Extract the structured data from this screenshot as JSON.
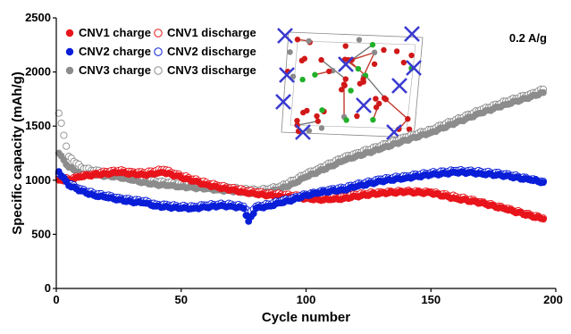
{
  "chart_data": {
    "type": "scatter",
    "xlabel": "Cycle number",
    "ylabel": "Specific capacity (mAh/g)",
    "xlim": [
      0,
      200
    ],
    "ylim": [
      0,
      2500
    ],
    "xticks": [
      0,
      50,
      100,
      150,
      200
    ],
    "xtick_labels": [
      "0",
      "50",
      "100",
      "150",
      "200"
    ],
    "yticks": [
      0,
      500,
      1000,
      1500,
      2000,
      2500
    ],
    "ytick_labels": [
      "0",
      "500",
      "1000",
      "1500",
      "2000",
      "2500"
    ],
    "grid": false,
    "legend_position": "top-left",
    "annotation": "0.2 A/g",
    "inset": "crystal-structure-image",
    "series": [
      {
        "name": "CNV1 charge",
        "marker": "filled",
        "color": "#e8141b",
        "x": [
          1,
          5,
          10,
          15,
          20,
          25,
          30,
          35,
          40,
          43,
          48,
          55,
          60,
          65,
          70,
          75,
          80,
          85,
          90,
          95,
          100,
          105,
          110,
          115,
          120,
          130,
          140,
          150,
          160,
          170,
          180,
          190,
          195
        ],
        "y": [
          1000,
          1000,
          1030,
          1050,
          1060,
          1070,
          1060,
          1050,
          1060,
          1070,
          1040,
          990,
          960,
          930,
          910,
          890,
          870,
          860,
          850,
          840,
          830,
          820,
          820,
          830,
          850,
          880,
          890,
          880,
          830,
          790,
          730,
          670,
          640
        ]
      },
      {
        "name": "CNV1 discharge",
        "marker": "open",
        "color": "#e8141b",
        "x": [
          1,
          5,
          10,
          15,
          20,
          25,
          30,
          35,
          40,
          43,
          48,
          55,
          60,
          65,
          70,
          75,
          80,
          85,
          90,
          95,
          100,
          105,
          110,
          115,
          120,
          130,
          140,
          150,
          160,
          170,
          180,
          190,
          195
        ],
        "y": [
          1030,
          1010,
          1040,
          1060,
          1080,
          1090,
          1080,
          1070,
          1090,
          1100,
          1060,
          1010,
          980,
          950,
          930,
          910,
          890,
          880,
          870,
          860,
          850,
          840,
          840,
          850,
          870,
          890,
          900,
          890,
          850,
          800,
          740,
          680,
          650
        ]
      },
      {
        "name": "CNV2 charge",
        "marker": "filled",
        "color": "#0a1ed8",
        "x": [
          1,
          5,
          10,
          15,
          20,
          25,
          30,
          35,
          40,
          45,
          50,
          55,
          60,
          65,
          70,
          75,
          77,
          80,
          85,
          90,
          95,
          100,
          105,
          110,
          115,
          120,
          130,
          140,
          150,
          160,
          165,
          170,
          180,
          190,
          195
        ],
        "y": [
          1080,
          950,
          900,
          860,
          840,
          820,
          800,
          790,
          760,
          750,
          740,
          740,
          750,
          760,
          760,
          740,
          620,
          740,
          760,
          790,
          820,
          860,
          880,
          900,
          910,
          940,
          990,
          1020,
          1050,
          1070,
          1070,
          1060,
          1040,
          1000,
          980
        ]
      },
      {
        "name": "CNV2 discharge",
        "marker": "open",
        "color": "#0a1ed8",
        "x": [
          1,
          5,
          10,
          15,
          20,
          25,
          30,
          35,
          40,
          45,
          50,
          55,
          60,
          65,
          70,
          75,
          77,
          80,
          85,
          90,
          95,
          100,
          105,
          110,
          115,
          120,
          130,
          140,
          150,
          160,
          165,
          170,
          180,
          190,
          195
        ],
        "y": [
          1060,
          970,
          920,
          880,
          860,
          840,
          820,
          810,
          780,
          770,
          760,
          760,
          770,
          780,
          780,
          760,
          700,
          760,
          780,
          810,
          840,
          870,
          890,
          920,
          930,
          960,
          1010,
          1040,
          1070,
          1090,
          1090,
          1080,
          1060,
          1010,
          990
        ]
      },
      {
        "name": "CNV3 charge",
        "marker": "filled",
        "color": "#8c8c8c",
        "x": [
          1,
          5,
          10,
          15,
          20,
          25,
          30,
          35,
          40,
          45,
          50,
          55,
          60,
          65,
          70,
          75,
          80,
          85,
          90,
          95,
          100,
          105,
          110,
          115,
          120,
          130,
          140,
          150,
          160,
          170,
          180,
          190,
          195
        ],
        "y": [
          1250,
          1120,
          1060,
          1050,
          1040,
          1030,
          1000,
          980,
          960,
          950,
          940,
          930,
          920,
          910,
          900,
          890,
          880,
          890,
          920,
          970,
          1030,
          1080,
          1130,
          1180,
          1220,
          1290,
          1370,
          1440,
          1530,
          1620,
          1700,
          1770,
          1810
        ]
      },
      {
        "name": "CNV3 discharge",
        "marker": "open",
        "color": "#8c8c8c",
        "x": [
          1,
          5,
          10,
          15,
          20,
          25,
          30,
          35,
          40,
          45,
          50,
          55,
          60,
          65,
          70,
          75,
          80,
          85,
          90,
          95,
          100,
          105,
          110,
          115,
          120,
          130,
          140,
          150,
          160,
          170,
          180,
          190,
          195
        ],
        "y": [
          1620,
          1220,
          1120,
          1090,
          1080,
          1060,
          1030,
          1010,
          990,
          980,
          970,
          960,
          950,
          940,
          930,
          920,
          910,
          920,
          950,
          1000,
          1060,
          1110,
          1160,
          1210,
          1250,
          1320,
          1400,
          1470,
          1560,
          1650,
          1730,
          1800,
          1840
        ]
      }
    ]
  }
}
